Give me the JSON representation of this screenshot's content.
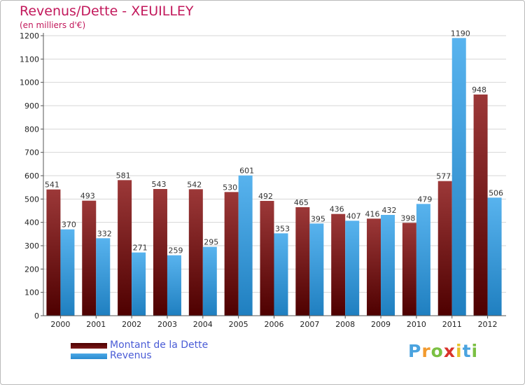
{
  "chart_data": {
    "type": "bar",
    "title": "Revenus/Dette - XEUILLEY",
    "subtitle": "(en milliers d'€)",
    "xlabel": "",
    "ylabel": "",
    "ylim": [
      0,
      1200
    ],
    "yticks": [
      0,
      100,
      200,
      300,
      400,
      500,
      600,
      700,
      800,
      900,
      1000,
      1100,
      1200
    ],
    "grid": true,
    "legend_position": "bottom-left",
    "categories": [
      "2000",
      "2001",
      "2002",
      "2003",
      "2004",
      "2005",
      "2006",
      "2007",
      "2008",
      "2009",
      "2010",
      "2011",
      "2012"
    ],
    "series": [
      {
        "name": "Montant de la Dette",
        "color": "#7a1a1a",
        "values": [
          541,
          493,
          581,
          543,
          542,
          530,
          492,
          465,
          436,
          416,
          398,
          577,
          948
        ]
      },
      {
        "name": "Revenus",
        "color": "#4ba8e6",
        "values": [
          370,
          332,
          271,
          259,
          295,
          601,
          353,
          395,
          407,
          432,
          479,
          1190,
          506
        ]
      }
    ]
  },
  "branding": {
    "logo_letters": [
      "P",
      "r",
      "o",
      "x",
      "i",
      "t",
      "i"
    ],
    "logo_colors": [
      "#4aa3df",
      "#f29a2e",
      "#7bc043",
      "#d9322a",
      "#e6c42c",
      "#4aa3df",
      "#7bc043"
    ]
  }
}
